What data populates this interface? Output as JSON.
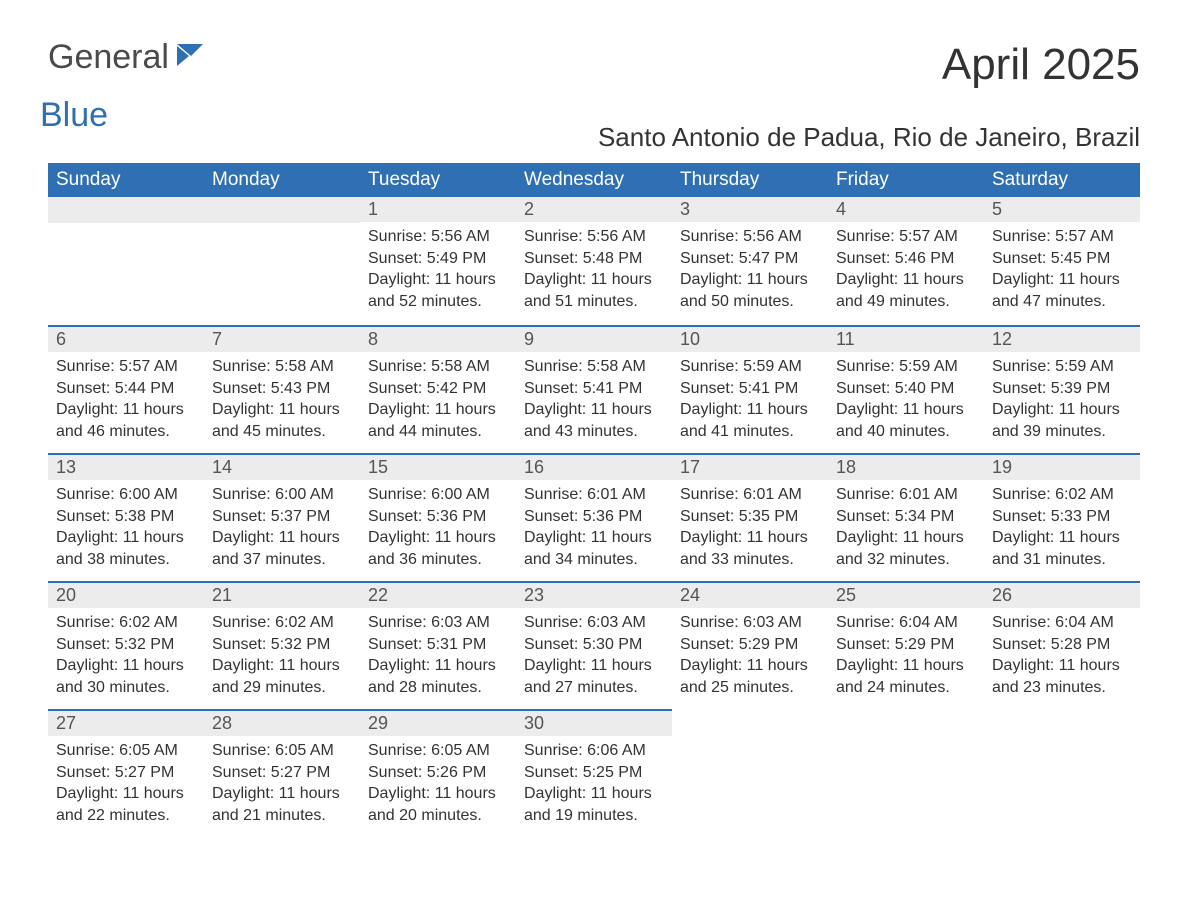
{
  "logo": {
    "word1": "General",
    "word2": "Blue",
    "icon_color": "#2f6fb4",
    "text_color_dark": "#4a4a4a"
  },
  "title": "April 2025",
  "subtitle": "Santo Antonio de Padua, Rio de Janeiro, Brazil",
  "colors": {
    "header_bg": "#2f6fb4",
    "header_text": "#ffffff",
    "daybar_bg": "#ececec",
    "daybar_border": "#2f6fb4",
    "body_text": "#333333",
    "page_bg": "#ffffff"
  },
  "weekdays": [
    "Sunday",
    "Monday",
    "Tuesday",
    "Wednesday",
    "Thursday",
    "Friday",
    "Saturday"
  ],
  "weeks": [
    [
      null,
      null,
      {
        "n": "1",
        "sunrise": "Sunrise: 5:56 AM",
        "sunset": "Sunset: 5:49 PM",
        "daylight": "Daylight: 11 hours and 52 minutes."
      },
      {
        "n": "2",
        "sunrise": "Sunrise: 5:56 AM",
        "sunset": "Sunset: 5:48 PM",
        "daylight": "Daylight: 11 hours and 51 minutes."
      },
      {
        "n": "3",
        "sunrise": "Sunrise: 5:56 AM",
        "sunset": "Sunset: 5:47 PM",
        "daylight": "Daylight: 11 hours and 50 minutes."
      },
      {
        "n": "4",
        "sunrise": "Sunrise: 5:57 AM",
        "sunset": "Sunset: 5:46 PM",
        "daylight": "Daylight: 11 hours and 49 minutes."
      },
      {
        "n": "5",
        "sunrise": "Sunrise: 5:57 AM",
        "sunset": "Sunset: 5:45 PM",
        "daylight": "Daylight: 11 hours and 47 minutes."
      }
    ],
    [
      {
        "n": "6",
        "sunrise": "Sunrise: 5:57 AM",
        "sunset": "Sunset: 5:44 PM",
        "daylight": "Daylight: 11 hours and 46 minutes."
      },
      {
        "n": "7",
        "sunrise": "Sunrise: 5:58 AM",
        "sunset": "Sunset: 5:43 PM",
        "daylight": "Daylight: 11 hours and 45 minutes."
      },
      {
        "n": "8",
        "sunrise": "Sunrise: 5:58 AM",
        "sunset": "Sunset: 5:42 PM",
        "daylight": "Daylight: 11 hours and 44 minutes."
      },
      {
        "n": "9",
        "sunrise": "Sunrise: 5:58 AM",
        "sunset": "Sunset: 5:41 PM",
        "daylight": "Daylight: 11 hours and 43 minutes."
      },
      {
        "n": "10",
        "sunrise": "Sunrise: 5:59 AM",
        "sunset": "Sunset: 5:41 PM",
        "daylight": "Daylight: 11 hours and 41 minutes."
      },
      {
        "n": "11",
        "sunrise": "Sunrise: 5:59 AM",
        "sunset": "Sunset: 5:40 PM",
        "daylight": "Daylight: 11 hours and 40 minutes."
      },
      {
        "n": "12",
        "sunrise": "Sunrise: 5:59 AM",
        "sunset": "Sunset: 5:39 PM",
        "daylight": "Daylight: 11 hours and 39 minutes."
      }
    ],
    [
      {
        "n": "13",
        "sunrise": "Sunrise: 6:00 AM",
        "sunset": "Sunset: 5:38 PM",
        "daylight": "Daylight: 11 hours and 38 minutes."
      },
      {
        "n": "14",
        "sunrise": "Sunrise: 6:00 AM",
        "sunset": "Sunset: 5:37 PM",
        "daylight": "Daylight: 11 hours and 37 minutes."
      },
      {
        "n": "15",
        "sunrise": "Sunrise: 6:00 AM",
        "sunset": "Sunset: 5:36 PM",
        "daylight": "Daylight: 11 hours and 36 minutes."
      },
      {
        "n": "16",
        "sunrise": "Sunrise: 6:01 AM",
        "sunset": "Sunset: 5:36 PM",
        "daylight": "Daylight: 11 hours and 34 minutes."
      },
      {
        "n": "17",
        "sunrise": "Sunrise: 6:01 AM",
        "sunset": "Sunset: 5:35 PM",
        "daylight": "Daylight: 11 hours and 33 minutes."
      },
      {
        "n": "18",
        "sunrise": "Sunrise: 6:01 AM",
        "sunset": "Sunset: 5:34 PM",
        "daylight": "Daylight: 11 hours and 32 minutes."
      },
      {
        "n": "19",
        "sunrise": "Sunrise: 6:02 AM",
        "sunset": "Sunset: 5:33 PM",
        "daylight": "Daylight: 11 hours and 31 minutes."
      }
    ],
    [
      {
        "n": "20",
        "sunrise": "Sunrise: 6:02 AM",
        "sunset": "Sunset: 5:32 PM",
        "daylight": "Daylight: 11 hours and 30 minutes."
      },
      {
        "n": "21",
        "sunrise": "Sunrise: 6:02 AM",
        "sunset": "Sunset: 5:32 PM",
        "daylight": "Daylight: 11 hours and 29 minutes."
      },
      {
        "n": "22",
        "sunrise": "Sunrise: 6:03 AM",
        "sunset": "Sunset: 5:31 PM",
        "daylight": "Daylight: 11 hours and 28 minutes."
      },
      {
        "n": "23",
        "sunrise": "Sunrise: 6:03 AM",
        "sunset": "Sunset: 5:30 PM",
        "daylight": "Daylight: 11 hours and 27 minutes."
      },
      {
        "n": "24",
        "sunrise": "Sunrise: 6:03 AM",
        "sunset": "Sunset: 5:29 PM",
        "daylight": "Daylight: 11 hours and 25 minutes."
      },
      {
        "n": "25",
        "sunrise": "Sunrise: 6:04 AM",
        "sunset": "Sunset: 5:29 PM",
        "daylight": "Daylight: 11 hours and 24 minutes."
      },
      {
        "n": "26",
        "sunrise": "Sunrise: 6:04 AM",
        "sunset": "Sunset: 5:28 PM",
        "daylight": "Daylight: 11 hours and 23 minutes."
      }
    ],
    [
      {
        "n": "27",
        "sunrise": "Sunrise: 6:05 AM",
        "sunset": "Sunset: 5:27 PM",
        "daylight": "Daylight: 11 hours and 22 minutes."
      },
      {
        "n": "28",
        "sunrise": "Sunrise: 6:05 AM",
        "sunset": "Sunset: 5:27 PM",
        "daylight": "Daylight: 11 hours and 21 minutes."
      },
      {
        "n": "29",
        "sunrise": "Sunrise: 6:05 AM",
        "sunset": "Sunset: 5:26 PM",
        "daylight": "Daylight: 11 hours and 20 minutes."
      },
      {
        "n": "30",
        "sunrise": "Sunrise: 6:06 AM",
        "sunset": "Sunset: 5:25 PM",
        "daylight": "Daylight: 11 hours and 19 minutes."
      },
      null,
      null,
      null
    ]
  ]
}
